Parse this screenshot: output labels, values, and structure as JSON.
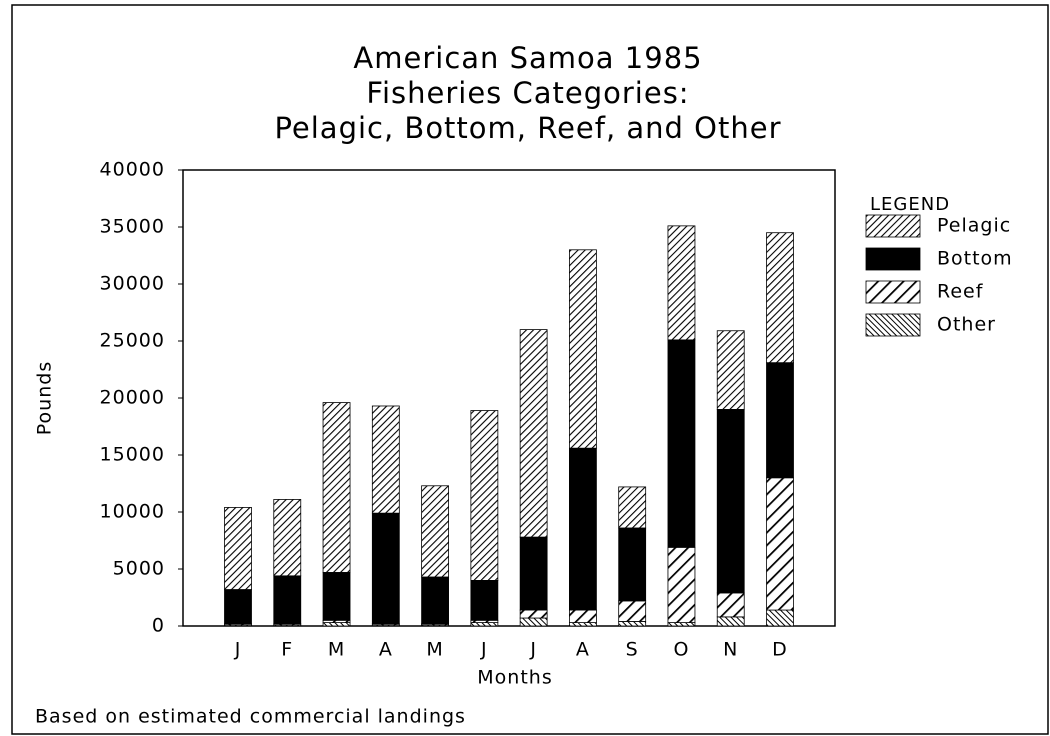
{
  "chart_data": {
    "type": "stacked-bar",
    "title": [
      "American Samoa 1985",
      "Fisheries Categories:",
      "Pelagic, Bottom, Reef, and Other"
    ],
    "x_label": "Months",
    "y_label": "Pounds",
    "footnote": "Based on estimated commercial landings",
    "legend_title": "LEGEND",
    "legend_position": "right",
    "categories": [
      "J",
      "F",
      "M",
      "A",
      "M",
      "J",
      "J",
      "A",
      "S",
      "O",
      "N",
      "D"
    ],
    "series": [
      {
        "name": "Other",
        "color": "#000000",
        "pattern": "fine-hatch",
        "values": [
          100,
          100,
          300,
          100,
          100,
          300,
          700,
          300,
          400,
          300,
          800,
          1400
        ]
      },
      {
        "name": "Reef",
        "color": "#000000",
        "pattern": "wide-hatch",
        "values": [
          100,
          100,
          200,
          100,
          100,
          200,
          700,
          1100,
          1800,
          6600,
          2100,
          11600
        ]
      },
      {
        "name": "Bottom",
        "color": "#000000",
        "pattern": "solid",
        "values": [
          3000,
          4200,
          4200,
          9700,
          4100,
          3500,
          6400,
          14200,
          6400,
          18200,
          16100,
          10100
        ]
      },
      {
        "name": "Pelagic",
        "color": "#000000",
        "pattern": "hatch",
        "values": [
          7200,
          6700,
          14900,
          9400,
          8000,
          14900,
          18200,
          17400,
          3600,
          10000,
          6900,
          11400
        ]
      }
    ],
    "legend_order": [
      3,
      2,
      1,
      0
    ],
    "ylim": [
      0,
      40000
    ],
    "yticks": [
      0,
      5000,
      10000,
      15000,
      20000,
      25000,
      30000,
      35000,
      40000
    ]
  }
}
